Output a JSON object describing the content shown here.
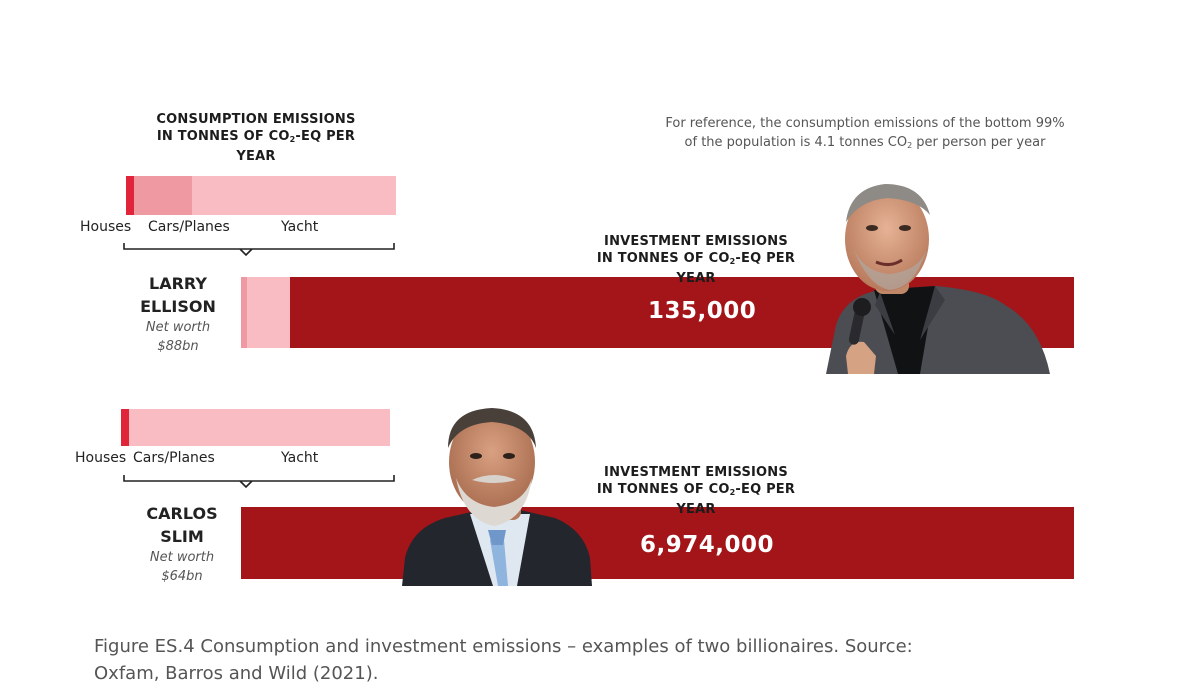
{
  "colors": {
    "houses": "#e0243a",
    "cars_planes": "#ef9aa3",
    "yacht": "#f9bcc2",
    "investment": "#a31519",
    "text": "#1a1a1a"
  },
  "headers": {
    "consumption_line1": "CONSUMPTION EMISSIONS",
    "consumption_line2_pre": "IN TONNES OF CO",
    "consumption_line2_sub": "2",
    "consumption_line2_post": "-EQ PER YEAR",
    "investment_line1": "INVESTMENT EMISSIONS",
    "investment_line2_pre": "IN TONNES OF CO",
    "investment_line2_sub": "2",
    "investment_line2_post": "-EQ PER YEAR"
  },
  "reference_note": {
    "line1": "For reference, the consumption emissions of the bottom 99%",
    "line2_pre": "of the population is 4.1 tonnes CO",
    "line2_sub": "2",
    "line2_post": " per person per year"
  },
  "category_labels": {
    "houses": "Houses",
    "cars_planes": "Cars/Planes",
    "yacht": "Yacht"
  },
  "people": [
    {
      "name_line1": "LARRY",
      "name_line2": "ELLISON",
      "net_worth_label": "Net worth",
      "net_worth_value": "$88bn",
      "investment_value": "135,000"
    },
    {
      "name_line1": "CARLOS",
      "name_line2": "SLIM",
      "net_worth_label": "Net worth",
      "net_worth_value": "$64bn",
      "investment_value": "6,974,000"
    }
  ],
  "icons": {
    "person1": "photo-larry-ellison",
    "person2": "photo-carlos-slim"
  },
  "caption": {
    "line1": "Figure ES.4 Consumption and investment emissions – examples of two billionaires. Source:",
    "line2": "Oxfam, Barros and Wild (2021)."
  },
  "chart_data": {
    "type": "bar",
    "categories": [
      "LARRY ELLISON",
      "CARLOS SLIM"
    ],
    "series": [
      {
        "name": "Houses",
        "values": [
          1.2,
          1.2
        ]
      },
      {
        "name": "Cars/Planes",
        "values": [
          7,
          0
        ]
      },
      {
        "name": "Yacht",
        "values": [
          22,
          29
        ]
      }
    ],
    "investment_emissions": [
      135000,
      6974000
    ],
    "note": "Consumption components read only as visual proportions; investment values are as printed."
  }
}
